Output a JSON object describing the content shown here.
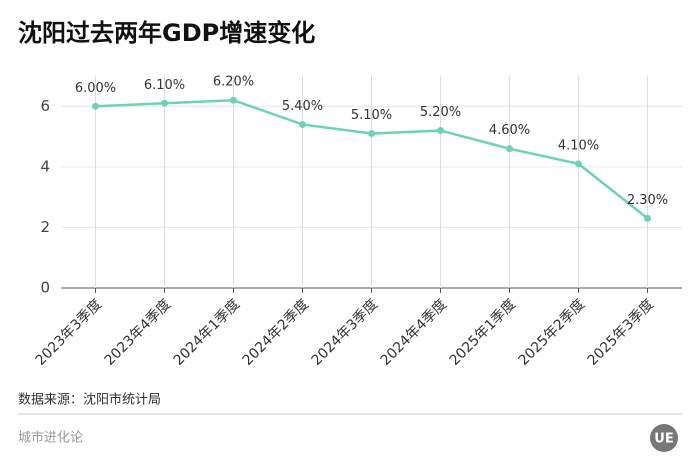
{
  "chart_data": {
    "type": "line",
    "title": "沈阳过去两年GDP增速变化",
    "categories": [
      "2023年3季度",
      "2023年4季度",
      "2024年1季度",
      "2024年2季度",
      "2024年3季度",
      "2024年4季度",
      "2025年1季度",
      "2025年2季度",
      "2025年3季度"
    ],
    "values": [
      6.0,
      6.1,
      6.2,
      5.4,
      5.1,
      5.2,
      4.6,
      4.1,
      2.3
    ],
    "value_labels": [
      "6.00%",
      "6.10%",
      "6.20%",
      "5.40%",
      "5.10%",
      "5.20%",
      "4.60%",
      "4.10%",
      "2.30%"
    ],
    "color": "#6dd4ae",
    "ylim": [
      0,
      7
    ],
    "yticks": [
      0,
      2,
      4,
      6
    ],
    "grid": true,
    "source": "数据来源：沈阳市统计局",
    "footer": "城市进化论",
    "logo": "UE"
  }
}
